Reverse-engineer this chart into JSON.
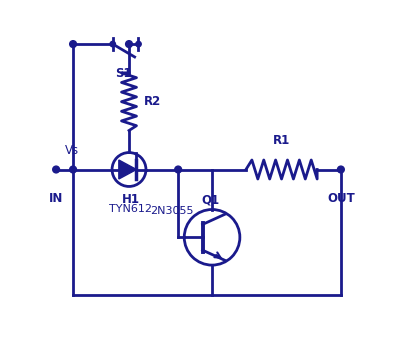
{
  "color": "#1a1a8c",
  "bg_color": "#ffffff",
  "lw": 2.0,
  "labels": {
    "Q1": "Q1",
    "Q1_sub": "2N3055",
    "H1": "H1",
    "H1_sub": "TYN612",
    "R1": "R1",
    "R2": "R2",
    "S1": "S1",
    "IN": "IN",
    "OUT": "OUT",
    "Vs": "Vs"
  }
}
